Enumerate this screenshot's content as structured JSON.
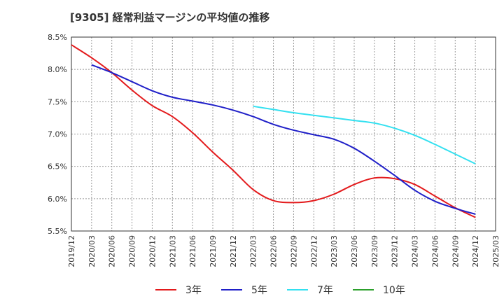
{
  "chart_data": {
    "type": "line",
    "title": "[9305]  経常利益マージンの平均値の推移",
    "xlabel": "",
    "ylabel": "",
    "ylim": [
      5.5,
      8.5
    ],
    "grid": true,
    "legend_position": "bottom",
    "y_ticks": [
      "5.5%",
      "6.0%",
      "6.5%",
      "7.0%",
      "7.5%",
      "8.0%",
      "8.5%"
    ],
    "x_ticks": [
      "2019/12",
      "2020/03",
      "2020/06",
      "2020/09",
      "2020/12",
      "2021/03",
      "2021/06",
      "2021/09",
      "2021/12",
      "2022/03",
      "2022/06",
      "2022/09",
      "2022/12",
      "2023/03",
      "2023/06",
      "2023/09",
      "2023/12",
      "2024/03",
      "2024/06",
      "2024/09",
      "2024/12",
      "2025/03"
    ],
    "series": [
      {
        "name": "3年",
        "color": "#e31a1c",
        "x": [
          "2019/12",
          "2020/03",
          "2020/06",
          "2020/09",
          "2020/12",
          "2021/03",
          "2021/06",
          "2021/09",
          "2021/12",
          "2022/03",
          "2022/06",
          "2022/09",
          "2022/12",
          "2023/03",
          "2023/06",
          "2023/09",
          "2023/12",
          "2024/03",
          "2024/06",
          "2024/09",
          "2024/12"
        ],
        "values": [
          8.38,
          8.18,
          7.95,
          7.68,
          7.44,
          7.27,
          7.02,
          6.72,
          6.44,
          6.14,
          5.97,
          5.94,
          5.97,
          6.07,
          6.22,
          6.32,
          6.31,
          6.22,
          6.04,
          5.86,
          5.71
        ]
      },
      {
        "name": "5年",
        "color": "#1f1fc8",
        "x": [
          "2020/03",
          "2020/06",
          "2020/09",
          "2020/12",
          "2021/03",
          "2021/06",
          "2021/09",
          "2021/12",
          "2022/03",
          "2022/06",
          "2022/09",
          "2022/12",
          "2023/03",
          "2023/06",
          "2023/09",
          "2023/12",
          "2024/03",
          "2024/06",
          "2024/09",
          "2024/12"
        ],
        "values": [
          8.07,
          7.95,
          7.81,
          7.67,
          7.57,
          7.51,
          7.45,
          7.37,
          7.27,
          7.15,
          7.06,
          6.99,
          6.92,
          6.78,
          6.58,
          6.36,
          6.13,
          5.96,
          5.85,
          5.76
        ]
      },
      {
        "name": "7年",
        "color": "#33e0f0",
        "x": [
          "2022/03",
          "2022/06",
          "2022/09",
          "2022/12",
          "2023/03",
          "2023/06",
          "2023/09",
          "2023/12",
          "2024/03",
          "2024/06",
          "2024/09",
          "2024/12"
        ],
        "values": [
          7.43,
          7.38,
          7.33,
          7.29,
          7.25,
          7.21,
          7.17,
          7.09,
          6.98,
          6.84,
          6.69,
          6.54
        ]
      },
      {
        "name": "10年",
        "color": "#2ca02c",
        "x": [],
        "values": []
      }
    ]
  }
}
